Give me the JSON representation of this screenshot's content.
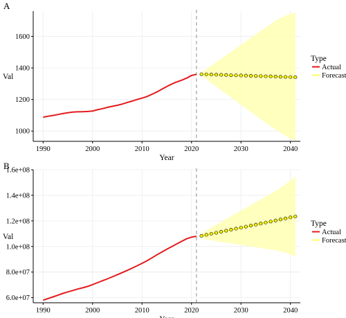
{
  "chart_data": [
    {
      "panel_label": "A",
      "type": "line",
      "xlabel": "Year",
      "ylabel": "Val",
      "xlim": [
        1988,
        2042
      ],
      "ylim": [
        935,
        1760
      ],
      "x_ticks": [
        1990,
        2000,
        2010,
        2020,
        2030,
        2040
      ],
      "y_ticks": [
        1000,
        1200,
        1400,
        1600
      ],
      "y_tick_labels": [
        "1000",
        "1200",
        "1400",
        "1600"
      ],
      "divider_x": 2021,
      "grid": true,
      "legend": {
        "title": "Type",
        "position": "right",
        "entries": [
          "Actual",
          "Forecast"
        ]
      },
      "series": [
        {
          "name": "Actual",
          "color": "#e31a1c",
          "x": [
            1990,
            1991,
            1992,
            1993,
            1994,
            1995,
            1996,
            1997,
            1998,
            1999,
            2000,
            2001,
            2002,
            2003,
            2004,
            2005,
            2006,
            2007,
            2008,
            2009,
            2010,
            2011,
            2012,
            2013,
            2014,
            2015,
            2016,
            2017,
            2018,
            2019,
            2020,
            2021
          ],
          "y": [
            1088,
            1094,
            1099,
            1105,
            1111,
            1116,
            1120,
            1122,
            1123,
            1124,
            1127,
            1135,
            1142,
            1150,
            1157,
            1163,
            1171,
            1181,
            1190,
            1200,
            1209,
            1219,
            1233,
            1248,
            1265,
            1282,
            1298,
            1311,
            1322,
            1335,
            1352,
            1360
          ]
        },
        {
          "name": "Forecast",
          "color": "#ffff88",
          "x": [
            2022,
            2023,
            2024,
            2025,
            2026,
            2027,
            2028,
            2029,
            2030,
            2031,
            2032,
            2033,
            2034,
            2035,
            2036,
            2037,
            2038,
            2039,
            2040,
            2041
          ],
          "y": [
            1360,
            1359,
            1358,
            1357,
            1356,
            1355,
            1354,
            1353,
            1352,
            1351,
            1350,
            1349,
            1348,
            1347,
            1346,
            1345,
            1344,
            1343,
            1342,
            1341
          ],
          "upper": [
            1370,
            1392,
            1414,
            1436,
            1458,
            1480,
            1502,
            1524,
            1546,
            1568,
            1590,
            1612,
            1634,
            1656,
            1678,
            1700,
            1716,
            1730,
            1742,
            1752
          ],
          "lower": [
            1350,
            1328,
            1305,
            1282,
            1259,
            1236,
            1213,
            1190,
            1167,
            1144,
            1121,
            1098,
            1075,
            1052,
            1030,
            1010,
            990,
            970,
            952,
            940
          ]
        }
      ]
    },
    {
      "panel_label": "B",
      "type": "line",
      "xlabel": "Year",
      "ylabel": "Val",
      "xlim": [
        1988,
        2042
      ],
      "ylim": [
        56000000,
        160000000
      ],
      "x_ticks": [
        1990,
        2000,
        2010,
        2020,
        2030,
        2040
      ],
      "y_ticks": [
        60000000,
        80000000,
        100000000,
        120000000,
        140000000,
        160000000
      ],
      "y_tick_labels": [
        "6.0e+07",
        "8.0e+07",
        "1.0e+08",
        "1.2e+08",
        "1.4e+08",
        "1.6e+08"
      ],
      "divider_x": 2021,
      "grid": true,
      "legend": {
        "title": "Type",
        "position": "right",
        "entries": [
          "Actual",
          "Forecast"
        ]
      },
      "series": [
        {
          "name": "Actual",
          "color": "#e31a1c",
          "x": [
            1990,
            1991,
            1992,
            1993,
            1994,
            1995,
            1996,
            1997,
            1998,
            1999,
            2000,
            2001,
            2002,
            2003,
            2004,
            2005,
            2006,
            2007,
            2008,
            2009,
            2010,
            2011,
            2012,
            2013,
            2014,
            2015,
            2016,
            2017,
            2018,
            2019,
            2020,
            2021
          ],
          "y": [
            58000000,
            59300000,
            60600000,
            61900000,
            63300000,
            64500000,
            65600000,
            66700000,
            67700000,
            68800000,
            70200000,
            71700000,
            73200000,
            74700000,
            76300000,
            77900000,
            79600000,
            81300000,
            83100000,
            84900000,
            86800000,
            88800000,
            91100000,
            93500000,
            95700000,
            97800000,
            99900000,
            102000000,
            104000000,
            106000000,
            107300000,
            108000000
          ]
        },
        {
          "name": "Forecast",
          "color": "#ffff88",
          "x": [
            2022,
            2023,
            2024,
            2025,
            2026,
            2027,
            2028,
            2029,
            2030,
            2031,
            2032,
            2033,
            2034,
            2035,
            2036,
            2037,
            2038,
            2039,
            2040,
            2041
          ],
          "y": [
            108300000,
            109100000,
            109900000,
            110700000,
            111500000,
            112300000,
            113100000,
            113900000,
            114700000,
            115500000,
            116300000,
            117100000,
            117900000,
            118700000,
            119500000,
            120300000,
            121100000,
            121900000,
            122700000,
            123500000
          ],
          "upper": [
            110000000,
            112500000,
            114800000,
            117000000,
            119200000,
            121400000,
            123600000,
            125800000,
            128000000,
            130200000,
            132400000,
            134600000,
            136800000,
            139000000,
            141200000,
            143400000,
            145800000,
            148600000,
            151600000,
            155000000
          ],
          "lower": [
            106600000,
            105500000,
            104800000,
            104200000,
            103600000,
            103000000,
            102400000,
            101800000,
            101200000,
            100600000,
            100000000,
            99400000,
            98800000,
            98200000,
            97600000,
            97000000,
            96300000,
            95200000,
            93800000,
            92000000
          ]
        }
      ]
    }
  ]
}
